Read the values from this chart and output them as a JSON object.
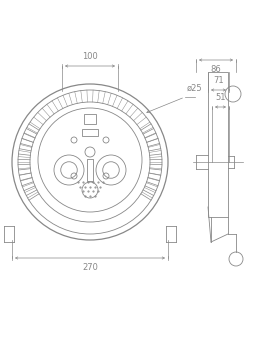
{
  "bg_color": "#ffffff",
  "line_color": "#888888",
  "fig_width": 2.66,
  "fig_height": 3.37,
  "dpi": 100,
  "dim_100_label": "100",
  "dim_270_label": "270",
  "dim_25_label": "ø25",
  "dim_51_label": "51",
  "dim_71_label": "71",
  "dim_86_label": "86"
}
